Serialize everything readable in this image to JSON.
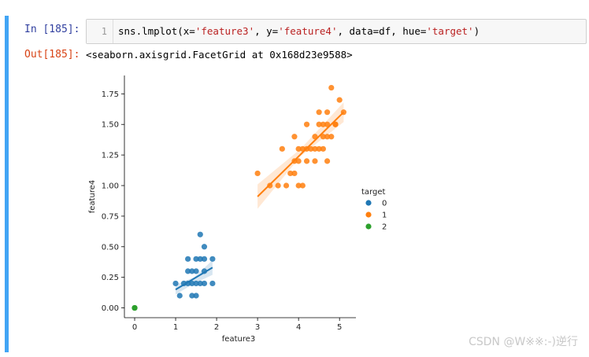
{
  "cell": {
    "in_prompt": "In  [185]:",
    "line_number": "1",
    "code": {
      "func": "sns.lmplot(x=",
      "x_arg": "'feature3'",
      "y_key": ", y=",
      "y_arg": "'feature4'",
      "data_key": ", data=df, hue=",
      "hue_arg": "'target'",
      "close": ")"
    },
    "out_prompt": "Out[185]:",
    "out_text": "<seaborn.axisgrid.FacetGrid at 0x168d23e9588>"
  },
  "colors": {
    "accent": "#42a5f5",
    "series0": "#1f77b4",
    "series1": "#ff7f0e",
    "series2": "#2ca02c"
  },
  "chart_data": {
    "type": "scatter",
    "xlabel": "feature3",
    "ylabel": "feature4",
    "xlim": [
      -0.25,
      5.4
    ],
    "ylim": [
      -0.08,
      1.9
    ],
    "xticks": [
      0,
      1,
      2,
      3,
      4,
      5
    ],
    "yticks": [
      "0.00",
      "0.25",
      "0.50",
      "0.75",
      "1.00",
      "1.25",
      "1.50",
      "1.75"
    ],
    "legend": {
      "title": "target",
      "placement": "right"
    },
    "series": [
      {
        "name": "0",
        "color": "#1f77b4",
        "points": [
          [
            1.0,
            0.2
          ],
          [
            1.1,
            0.1
          ],
          [
            1.2,
            0.2
          ],
          [
            1.3,
            0.2
          ],
          [
            1.3,
            0.3
          ],
          [
            1.3,
            0.4
          ],
          [
            1.4,
            0.2
          ],
          [
            1.4,
            0.1
          ],
          [
            1.4,
            0.3
          ],
          [
            1.5,
            0.2
          ],
          [
            1.5,
            0.1
          ],
          [
            1.5,
            0.4
          ],
          [
            1.5,
            0.3
          ],
          [
            1.6,
            0.2
          ],
          [
            1.6,
            0.4
          ],
          [
            1.6,
            0.6
          ],
          [
            1.7,
            0.4
          ],
          [
            1.7,
            0.2
          ],
          [
            1.7,
            0.3
          ],
          [
            1.7,
            0.5
          ],
          [
            1.9,
            0.2
          ],
          [
            1.9,
            0.4
          ]
        ],
        "fit": [
          [
            1.0,
            0.15
          ],
          [
            1.9,
            0.33
          ]
        ],
        "band": [
          [
            1.0,
            0.11,
            0.19
          ],
          [
            1.45,
            0.2,
            0.25
          ],
          [
            1.9,
            0.27,
            0.39
          ]
        ]
      },
      {
        "name": "1",
        "color": "#ff7f0e",
        "points": [
          [
            3.0,
            1.1
          ],
          [
            3.3,
            1.0
          ],
          [
            3.5,
            1.0
          ],
          [
            3.6,
            1.3
          ],
          [
            3.7,
            1.0
          ],
          [
            3.8,
            1.1
          ],
          [
            3.9,
            1.1
          ],
          [
            3.9,
            1.2
          ],
          [
            3.9,
            1.4
          ],
          [
            4.0,
            1.0
          ],
          [
            4.0,
            1.2
          ],
          [
            4.0,
            1.3
          ],
          [
            4.1,
            1.0
          ],
          [
            4.1,
            1.3
          ],
          [
            4.2,
            1.2
          ],
          [
            4.2,
            1.3
          ],
          [
            4.2,
            1.5
          ],
          [
            4.3,
            1.3
          ],
          [
            4.4,
            1.2
          ],
          [
            4.4,
            1.3
          ],
          [
            4.4,
            1.4
          ],
          [
            4.5,
            1.5
          ],
          [
            4.5,
            1.3
          ],
          [
            4.5,
            1.6
          ],
          [
            4.6,
            1.3
          ],
          [
            4.6,
            1.4
          ],
          [
            4.6,
            1.5
          ],
          [
            4.7,
            1.4
          ],
          [
            4.7,
            1.2
          ],
          [
            4.7,
            1.5
          ],
          [
            4.7,
            1.6
          ],
          [
            4.8,
            1.4
          ],
          [
            4.8,
            1.8
          ],
          [
            4.9,
            1.5
          ],
          [
            4.9,
            1.5
          ],
          [
            5.0,
            1.7
          ],
          [
            5.1,
            1.6
          ]
        ],
        "fit": [
          [
            3.0,
            0.91
          ],
          [
            5.1,
            1.6
          ]
        ],
        "band": [
          [
            3.0,
            0.81,
            1.01
          ],
          [
            4.05,
            1.24,
            1.3
          ],
          [
            5.1,
            1.52,
            1.68
          ]
        ]
      },
      {
        "name": "2",
        "color": "#2ca02c",
        "points": [
          [
            0,
            0
          ],
          [
            0,
            0
          ],
          [
            0,
            0
          ]
        ],
        "fit": null,
        "band": null
      }
    ]
  },
  "watermark": "CSDN @W※※:-)逆行"
}
